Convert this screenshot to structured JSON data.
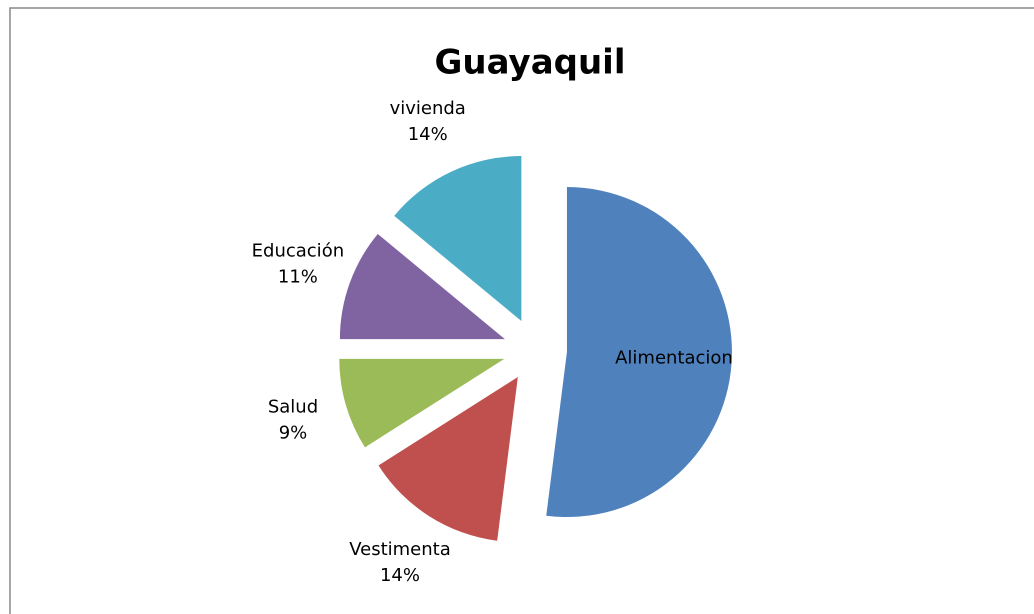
{
  "chart_data": {
    "type": "pie",
    "title": "Guayaquil",
    "categories": [
      "Alimentacion",
      "Vestimenta",
      "Salud",
      "Educación",
      "vivienda"
    ],
    "values": [
      52,
      14,
      9,
      11,
      14
    ],
    "value_labels": [
      null,
      "14%",
      "9%",
      "11%",
      "14%"
    ],
    "colors": [
      "#4f81bd",
      "#c0504d",
      "#9bbb59",
      "#8064a2",
      "#4bacc6"
    ]
  }
}
